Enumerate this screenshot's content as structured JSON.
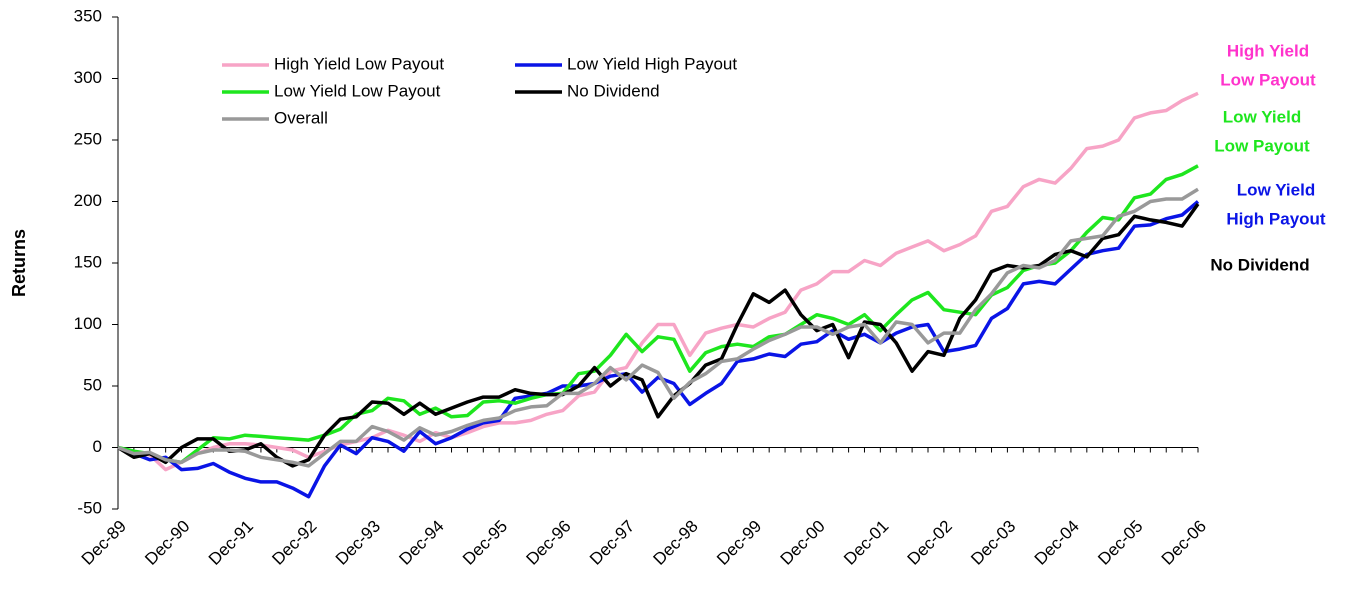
{
  "chart_data": {
    "type": "line",
    "y_label": "Returns",
    "categories": [
      "Dec-89",
      null,
      null,
      null,
      "Dec-90",
      null,
      null,
      null,
      "Dec-91",
      null,
      null,
      null,
      "Dec-92",
      null,
      null,
      null,
      "Dec-93",
      null,
      null,
      null,
      "Dec-94",
      null,
      null,
      null,
      "Dec-95",
      null,
      null,
      null,
      "Dec-96",
      null,
      null,
      null,
      "Dec-97",
      null,
      null,
      null,
      "Dec-98",
      null,
      null,
      null,
      "Dec-99",
      null,
      null,
      null,
      "Dec-00",
      null,
      null,
      null,
      "Dec-01",
      null,
      null,
      null,
      "Dec-02",
      null,
      null,
      null,
      "Dec-03",
      null,
      null,
      null,
      "Dec-04",
      null,
      null,
      null,
      "Dec-05",
      null,
      null,
      null,
      "Dec-06"
    ],
    "series": [
      {
        "name": "High Yield Low Payout",
        "color": "#f7a4c6",
        "values": [
          0,
          -4,
          -6,
          -18,
          -12,
          -5,
          0,
          3,
          3,
          2,
          0,
          -2,
          -8,
          -3,
          2,
          5,
          8,
          14,
          10,
          5,
          12,
          8,
          12,
          17,
          20,
          20,
          22,
          27,
          30,
          42,
          45,
          62,
          65,
          85,
          100,
          100,
          75,
          93,
          97,
          100,
          98,
          105,
          110,
          128,
          133,
          143,
          143,
          152,
          148,
          158,
          163,
          168,
          160,
          165,
          172,
          192,
          196,
          212,
          218,
          215,
          227,
          243,
          245,
          250,
          268,
          272,
          274,
          282,
          288
        ]
      },
      {
        "name": "Low Yield High Payout",
        "color": "#0a14e6",
        "values": [
          0,
          -5,
          -10,
          -8,
          -18,
          -17,
          -13,
          -20,
          -25,
          -28,
          -28,
          -33,
          -40,
          -15,
          2,
          -5,
          8,
          5,
          -3,
          13,
          3,
          8,
          15,
          20,
          22,
          40,
          42,
          44,
          50,
          50,
          52,
          58,
          60,
          45,
          57,
          52,
          35,
          44,
          52,
          70,
          72,
          76,
          74,
          84,
          86,
          95,
          88,
          92,
          85,
          93,
          98,
          100,
          78,
          80,
          83,
          105,
          113,
          133,
          135,
          133,
          145,
          157,
          160,
          162,
          180,
          181,
          186,
          189,
          200
        ]
      },
      {
        "name": "Low Yield Low Payout",
        "color": "#1ee61e",
        "values": [
          0,
          -3,
          -5,
          -10,
          -12,
          -2,
          8,
          7,
          10,
          9,
          8,
          7,
          6,
          10,
          15,
          27,
          30,
          40,
          38,
          27,
          32,
          25,
          26,
          37,
          38,
          36,
          40,
          43,
          44,
          60,
          62,
          75,
          92,
          78,
          90,
          88,
          62,
          77,
          82,
          84,
          82,
          90,
          92,
          100,
          108,
          105,
          100,
          108,
          95,
          108,
          120,
          126,
          112,
          110,
          108,
          124,
          130,
          144,
          148,
          150,
          160,
          175,
          187,
          185,
          203,
          206,
          218,
          222,
          229
        ]
      },
      {
        "name": "No Dividend",
        "color": "#000000",
        "values": [
          0,
          -8,
          -5,
          -12,
          0,
          7,
          7,
          -3,
          -2,
          3,
          -8,
          -15,
          -10,
          10,
          23,
          25,
          37,
          36,
          27,
          36,
          27,
          32,
          37,
          41,
          41,
          47,
          44,
          43,
          43,
          50,
          65,
          50,
          60,
          55,
          25,
          42,
          52,
          67,
          72,
          100,
          125,
          118,
          128,
          108,
          95,
          100,
          73,
          102,
          100,
          85,
          62,
          78,
          75,
          105,
          120,
          143,
          148,
          146,
          148,
          157,
          160,
          155,
          170,
          173,
          188,
          185,
          183,
          180,
          198
        ]
      },
      {
        "name": "Overall",
        "color": "#999999",
        "values": [
          0,
          -5,
          -4,
          -10,
          -12,
          -5,
          -2,
          -2,
          -3,
          -8,
          -10,
          -12,
          -15,
          -5,
          5,
          5,
          17,
          13,
          6,
          16,
          10,
          13,
          18,
          22,
          24,
          30,
          33,
          34,
          44,
          44,
          52,
          65,
          55,
          67,
          61,
          40,
          53,
          60,
          70,
          72,
          80,
          87,
          92,
          98,
          98,
          92,
          98,
          100,
          85,
          102,
          100,
          85,
          93,
          93,
          112,
          125,
          142,
          148,
          146,
          152,
          168,
          170,
          172,
          188,
          192,
          200,
          202,
          202,
          210
        ]
      }
    ],
    "ylim": [
      -50,
      350
    ],
    "yticks": [
      -50,
      0,
      50,
      100,
      150,
      200,
      250,
      300,
      350
    ],
    "annotations": [
      {
        "lines": [
          "High Yield",
          "Low Payout"
        ],
        "color": "#ff33cc"
      },
      {
        "lines": [
          "Low Yield",
          "Low Payout"
        ],
        "color": "#1ee61e"
      },
      {
        "lines": [
          "Low Yield",
          "High Payout"
        ],
        "color": "#0a14e6"
      },
      {
        "lines": [
          "No Dividend"
        ],
        "color": "#000000"
      }
    ]
  }
}
